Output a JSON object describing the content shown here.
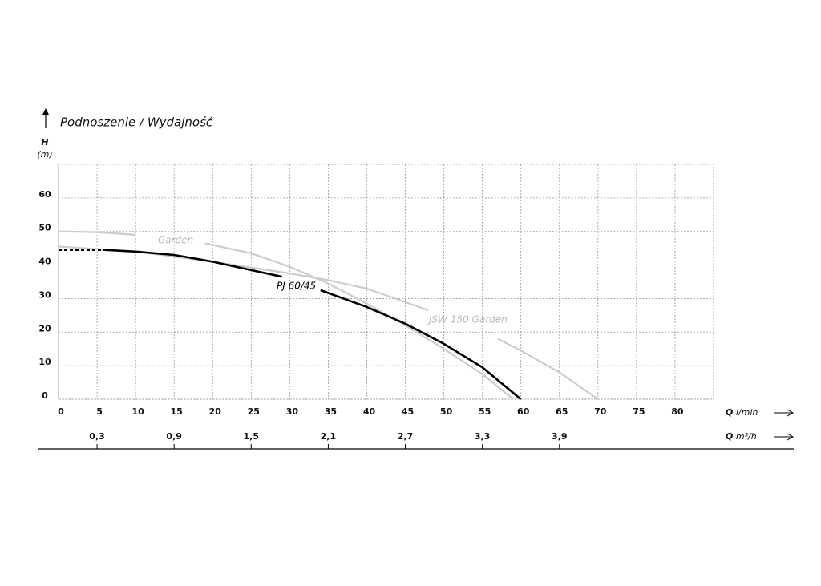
{
  "chart_data": {
    "type": "line",
    "title": "Podnoszenie / Wydajność",
    "y_label": "H",
    "y_unit": "(m)",
    "x_label": "Q",
    "x_unit": "l/min",
    "x2_label": "Q",
    "x2_unit": "m³/h",
    "xlim": [
      0,
      85
    ],
    "xticks": [
      0,
      5,
      10,
      15,
      20,
      25,
      30,
      35,
      40,
      45,
      50,
      55,
      60,
      65,
      70,
      75,
      80
    ],
    "ylim": [
      0,
      70
    ],
    "yticks": [
      0,
      10,
      20,
      30,
      40,
      50,
      60
    ],
    "x2lim": [
      0,
      5.1
    ],
    "x2ticks": [
      {
        "value": 0.3,
        "label": "0,3"
      },
      {
        "value": 0.9,
        "label": "0,9"
      },
      {
        "value": 1.5,
        "label": "1,5"
      },
      {
        "value": 2.1,
        "label": "2,1"
      },
      {
        "value": 2.7,
        "label": "2,7"
      },
      {
        "value": 3.3,
        "label": "3,3"
      },
      {
        "value": 3.9,
        "label": "3,9"
      }
    ],
    "grid": true,
    "series": [
      {
        "name": "Garden",
        "color": "#cccccc",
        "x": [
          0,
          5,
          10,
          12,
          19,
          25,
          30,
          35,
          40,
          45,
          50,
          55,
          59
        ],
        "values": [
          50,
          49.8,
          49,
          null,
          46.5,
          43.5,
          39.5,
          34.5,
          28.5,
          22,
          15,
          7.5,
          0
        ]
      },
      {
        "name": "JSW 150 Garden",
        "color": "#cccccc",
        "x": [
          0,
          10,
          20,
          30,
          35,
          40,
          48,
          52,
          57,
          60,
          65,
          70
        ],
        "values": [
          45.5,
          44,
          41,
          37.5,
          35.5,
          33,
          26.5,
          null,
          18,
          14.5,
          8,
          0
        ]
      },
      {
        "color": "#000000",
        "dash": true,
        "x": [
          0,
          6
        ],
        "values": [
          44.5,
          44.5
        ]
      },
      {
        "name": "PJ 60/45",
        "color": "#000000",
        "x": [
          6,
          10,
          15,
          20,
          25,
          29,
          31,
          34,
          40,
          45,
          50,
          55,
          60
        ],
        "values": [
          44.5,
          44,
          43,
          41,
          38.5,
          36.5,
          null,
          32.5,
          27.5,
          22.5,
          16.5,
          9.5,
          0
        ]
      }
    ]
  }
}
